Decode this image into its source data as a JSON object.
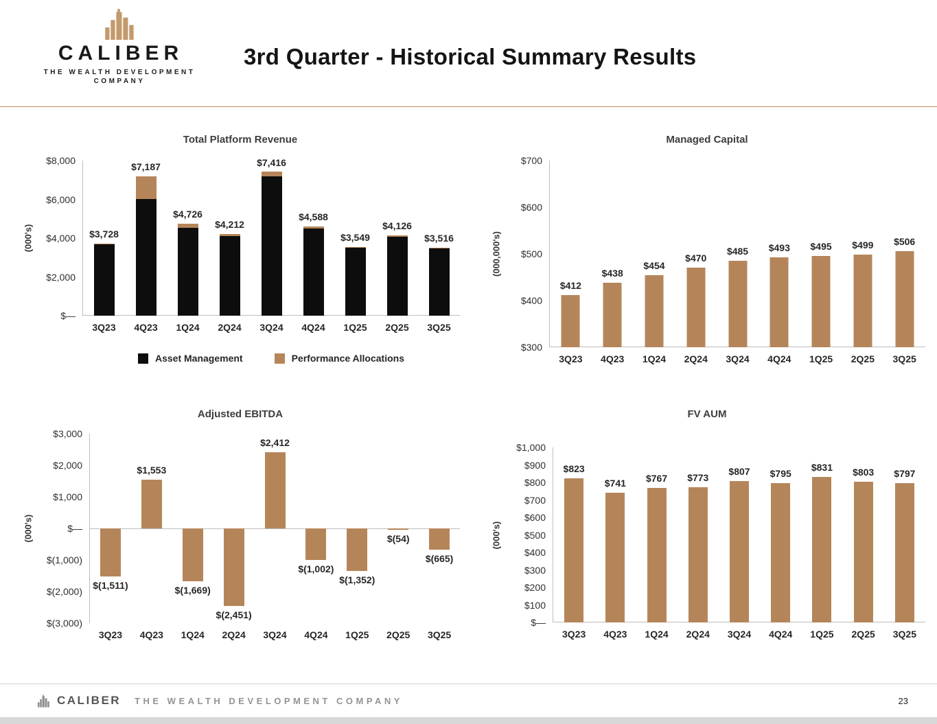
{
  "page": {
    "title": "3rd Quarter - Historical Summary Results",
    "page_number": "23"
  },
  "brand": {
    "name": "CALIBER",
    "tagline_line1": "THE WEALTH DEVELOPMENT",
    "tagline_line2": "COMPANY"
  },
  "footer": {
    "brand": "CALIBER",
    "tagline": "THE WEALTH DEVELOPMENT COMPANY"
  },
  "icons": {
    "header_logo": "caliber-buildings-icon",
    "footer_logo": "caliber-buildings-icon"
  },
  "colors": {
    "brown": "#b5855a",
    "black": "#0d0d0d",
    "logo_gold": "#c49a6c",
    "footer_gray": "#8f8f8f",
    "header_rule": "#c2885a",
    "axis_line": "#bdbdbd"
  },
  "chart_data": [
    {
      "id": "total-platform-revenue",
      "type": "bar",
      "stacked": true,
      "show_legend": true,
      "title": "Total Platform Revenue",
      "ylabel": "(000's)",
      "categories": [
        "3Q23",
        "4Q23",
        "1Q24",
        "2Q24",
        "3Q24",
        "4Q24",
        "1Q25",
        "2Q25",
        "3Q25"
      ],
      "series": [
        {
          "name": "Asset Management",
          "color_key": "black",
          "values": [
            3700,
            6010,
            4520,
            4110,
            7190,
            4500,
            3530,
            4060,
            3500
          ]
        },
        {
          "name": "Performance Allocations",
          "color_key": "brown",
          "values": [
            28,
            1177,
            206,
            102,
            226,
            88,
            19,
            66,
            16
          ]
        }
      ],
      "totals": [
        3728,
        7187,
        4726,
        4212,
        7416,
        4588,
        3549,
        4126,
        3516
      ],
      "labels": [
        "$3,728",
        "$7,187",
        "$4,726",
        "$4,212",
        "$7,416",
        "$4,588",
        "$3,549",
        "$4,126",
        "$3,516"
      ],
      "ymin": 0,
      "ymax": 8000,
      "yticks": [
        {
          "v": 8000,
          "label": "$8,000"
        },
        {
          "v": 6000,
          "label": "$6,000"
        },
        {
          "v": 4000,
          "label": "$4,000"
        },
        {
          "v": 2000,
          "label": "$2,000"
        },
        {
          "v": 0,
          "label": "$—"
        }
      ],
      "legend": [
        "Asset Management",
        "Performance Allocations"
      ],
      "grid": false,
      "legend_position": "bottom"
    },
    {
      "id": "managed-capital",
      "type": "bar",
      "title": "Managed Capital",
      "ylabel": "(000,000's)",
      "color_key": "brown",
      "categories": [
        "3Q23",
        "4Q23",
        "1Q24",
        "2Q24",
        "3Q24",
        "4Q24",
        "1Q25",
        "2Q25",
        "3Q25"
      ],
      "values": [
        412,
        438,
        454,
        470,
        485,
        493,
        495,
        499,
        506
      ],
      "labels": [
        "$412",
        "$438",
        "$454",
        "$470",
        "$485",
        "$493",
        "$495",
        "$499",
        "$506"
      ],
      "ymin": 300,
      "ymax": 700,
      "yticks": [
        {
          "v": 700,
          "label": "$700"
        },
        {
          "v": 600,
          "label": "$600"
        },
        {
          "v": 500,
          "label": "$500"
        },
        {
          "v": 400,
          "label": "$400"
        },
        {
          "v": 300,
          "label": "$300"
        }
      ],
      "grid": false
    },
    {
      "id": "adjusted-ebitda",
      "type": "bar",
      "title": "Adjusted EBITDA",
      "ylabel": "(000's)",
      "color_key": "brown",
      "categories": [
        "3Q23",
        "4Q23",
        "1Q24",
        "2Q24",
        "3Q24",
        "4Q24",
        "1Q25",
        "2Q25",
        "3Q25"
      ],
      "values": [
        -1511,
        1553,
        -1669,
        -2451,
        2412,
        -1002,
        -1352,
        -54,
        -665
      ],
      "labels": [
        "$(1,511)",
        "$1,553",
        "$(1,669)",
        "$(2,451)",
        "$2,412",
        "$(1,002)",
        "$(1,352)",
        "$(54)",
        "$(665)"
      ],
      "ymin": -3000,
      "ymax": 3000,
      "yticks": [
        {
          "v": 3000,
          "label": "$3,000"
        },
        {
          "v": 2000,
          "label": "$2,000"
        },
        {
          "v": 1000,
          "label": "$1,000"
        },
        {
          "v": 0,
          "label": "$—"
        },
        {
          "v": -1000,
          "label": "$(1,000)"
        },
        {
          "v": -2000,
          "label": "$(2,000)"
        },
        {
          "v": -3000,
          "label": "$(3,000)"
        }
      ],
      "grid": false
    },
    {
      "id": "fv-aum",
      "type": "bar",
      "title": "FV AUM",
      "ylabel": "(000's)",
      "color_key": "brown",
      "categories": [
        "3Q23",
        "4Q23",
        "1Q24",
        "2Q24",
        "3Q24",
        "4Q24",
        "1Q25",
        "2Q25",
        "3Q25"
      ],
      "values": [
        823,
        741,
        767,
        773,
        807,
        795,
        831,
        803,
        797
      ],
      "labels": [
        "$823",
        "$741",
        "$767",
        "$773",
        "$807",
        "$795",
        "$831",
        "$803",
        "$797"
      ],
      "ymin": 0,
      "ymax": 1000,
      "yticks": [
        {
          "v": 1000,
          "label": "$1,000"
        },
        {
          "v": 900,
          "label": "$900"
        },
        {
          "v": 800,
          "label": "$800"
        },
        {
          "v": 700,
          "label": "$700"
        },
        {
          "v": 600,
          "label": "$600"
        },
        {
          "v": 500,
          "label": "$500"
        },
        {
          "v": 400,
          "label": "$400"
        },
        {
          "v": 300,
          "label": "$300"
        },
        {
          "v": 200,
          "label": "$200"
        },
        {
          "v": 100,
          "label": "$100"
        },
        {
          "v": 0,
          "label": "$—"
        }
      ],
      "grid": false
    }
  ]
}
